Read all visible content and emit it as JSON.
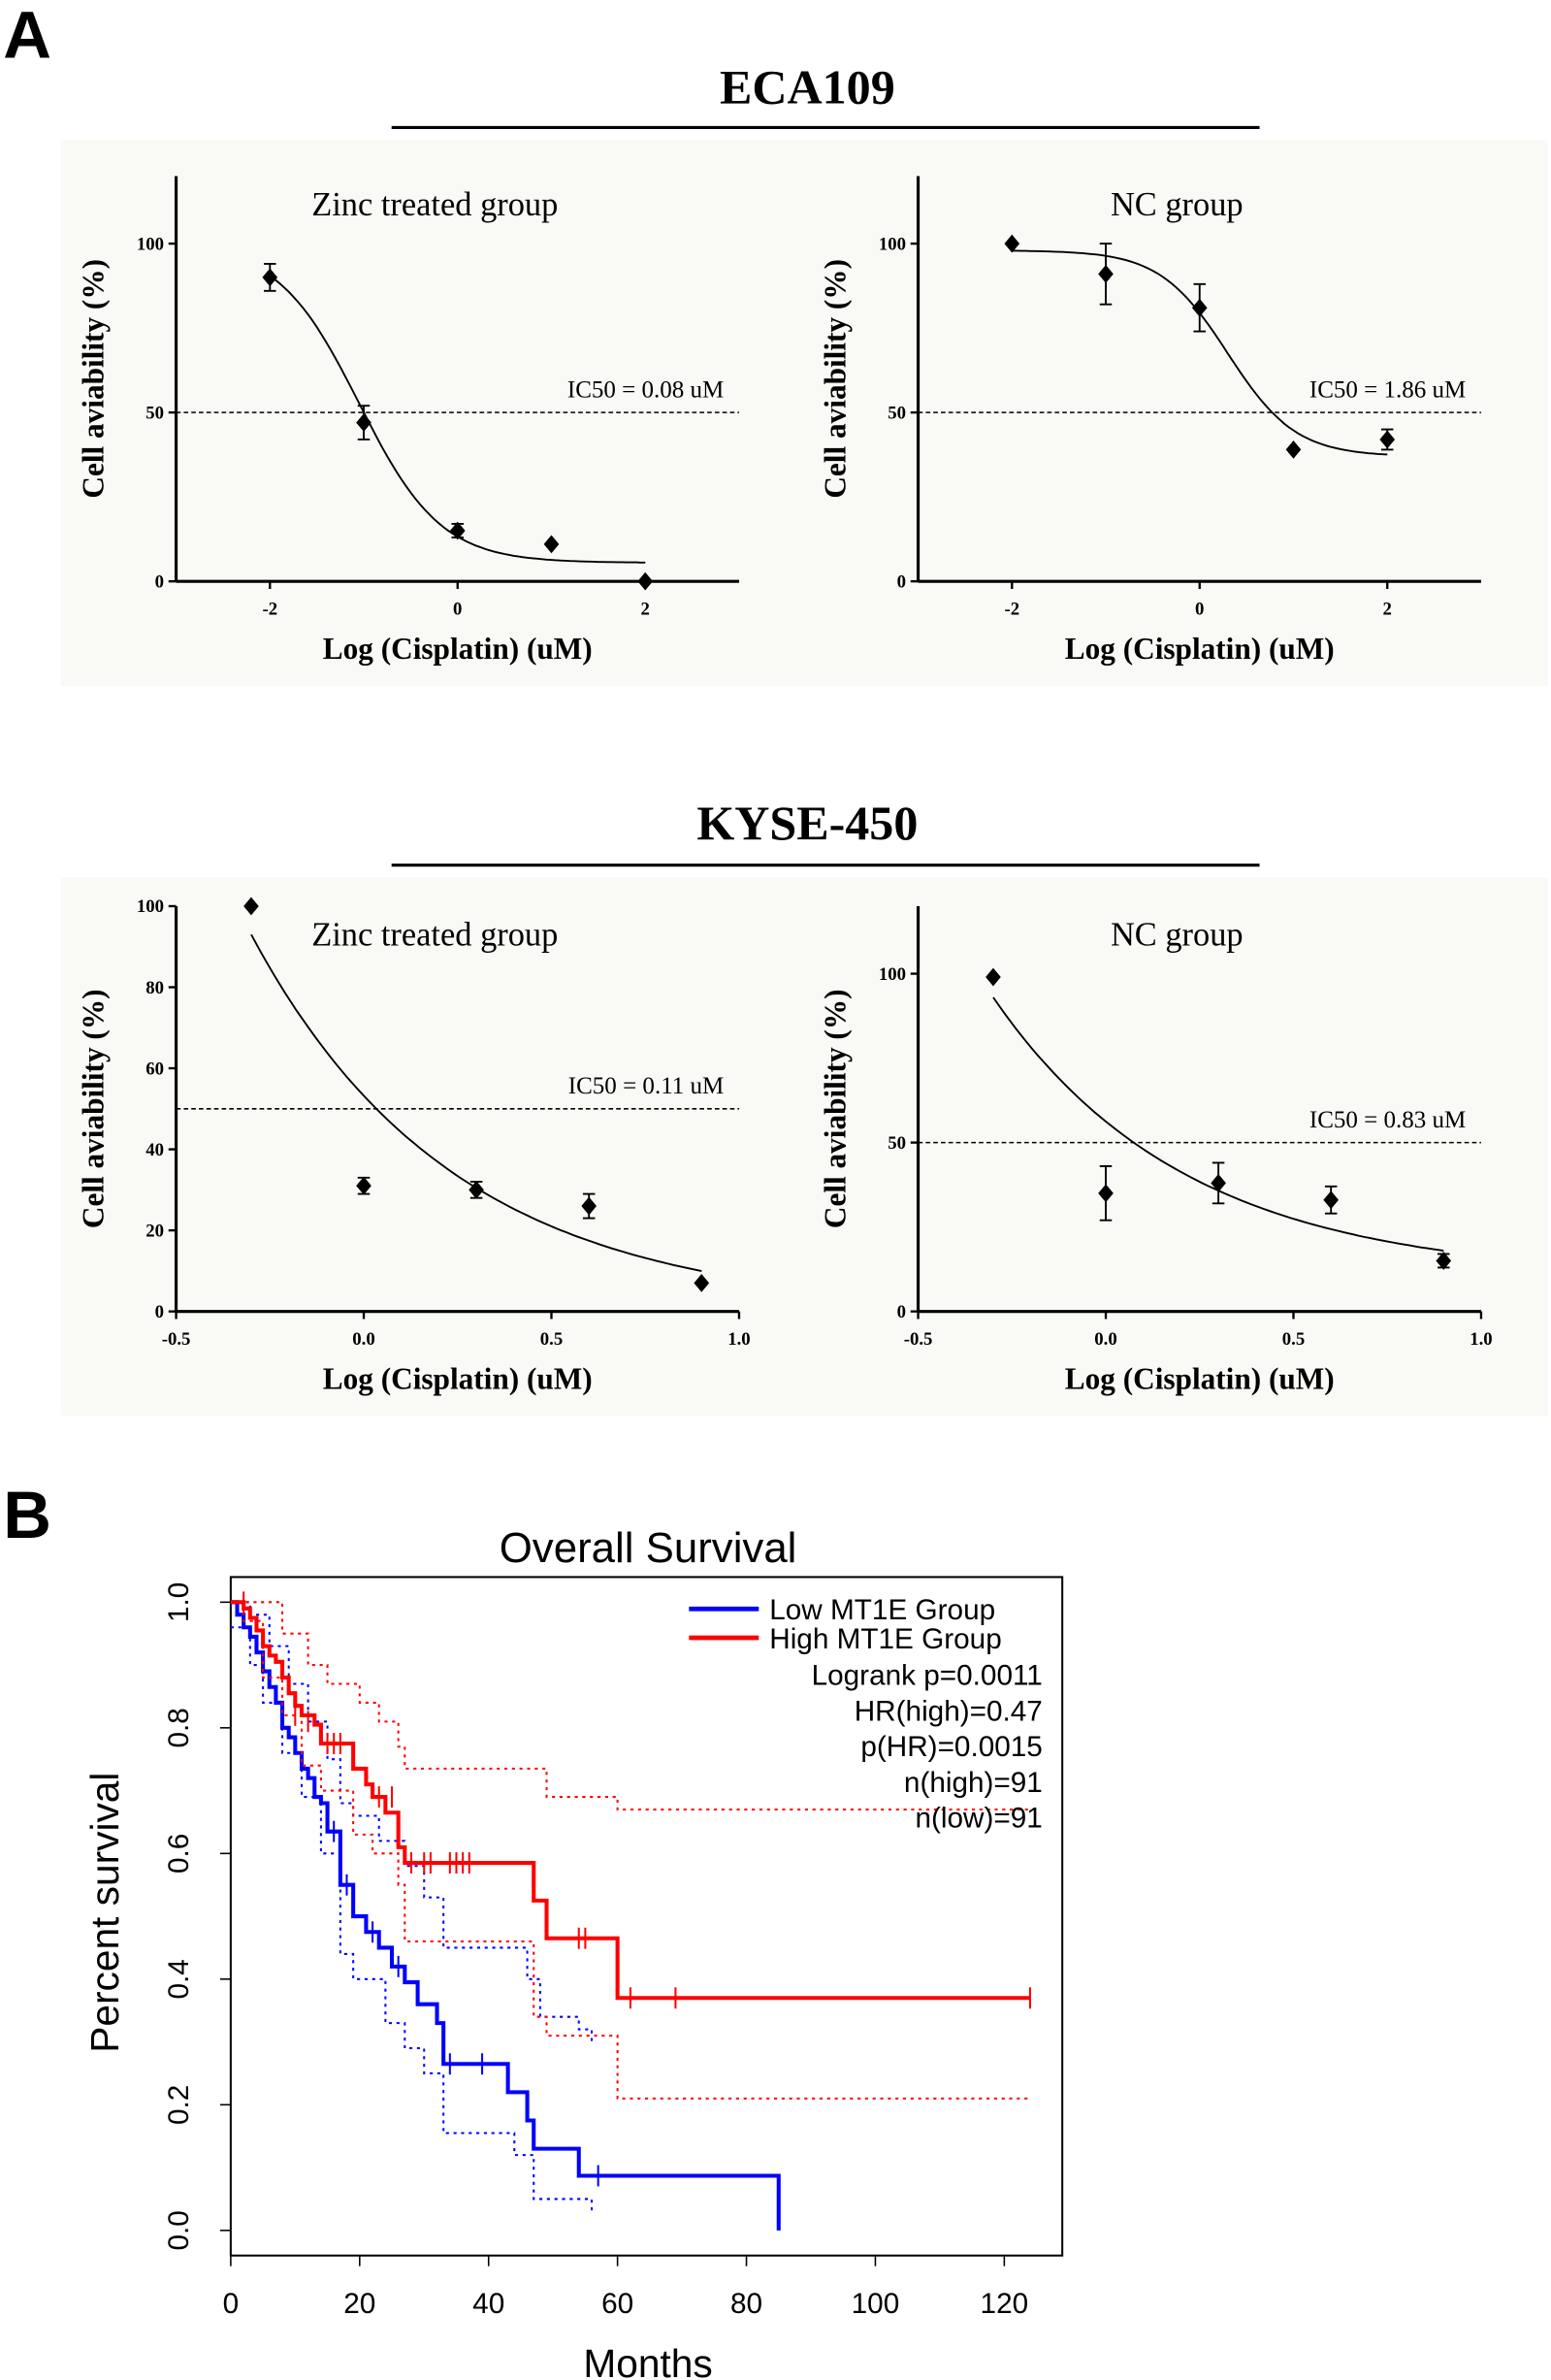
{
  "panel_labels": {
    "a": "A",
    "b": "B"
  },
  "groups": [
    {
      "title": "ECA109"
    },
    {
      "title": "KYSE-450"
    }
  ],
  "chart_data": [
    {
      "type": "scatter",
      "group": "ECA109",
      "title": "Zinc treated group",
      "xlabel": "Log (Cisplatin) (uM)",
      "ylabel": "Cell aviability (%)",
      "xlim": [
        -3,
        3
      ],
      "ylim": [
        0,
        120
      ],
      "xticks": [
        -2,
        0,
        2
      ],
      "xtick_labels": [
        "-2",
        "0",
        "2"
      ],
      "yticks": [
        0,
        50,
        100
      ],
      "ytick_labels": [
        "0",
        "50",
        "100"
      ],
      "points": [
        {
          "x": -2,
          "y": 90,
          "err": 4
        },
        {
          "x": -1,
          "y": 47,
          "err": 5
        },
        {
          "x": 0,
          "y": 15,
          "err": 2
        },
        {
          "x": 1,
          "y": 11,
          "err": 0
        },
        {
          "x": 2,
          "y": 0,
          "err": 0
        }
      ],
      "fit": {
        "model": "sigmoid",
        "bottom": 5.5,
        "top": 100,
        "logx50": -1.05,
        "hill": 1.0,
        "range": [
          -2,
          2
        ]
      },
      "reference_line": 50,
      "annotation": "IC50 = 0.08 uM"
    },
    {
      "type": "scatter",
      "group": "ECA109",
      "title": "NC group",
      "xlabel": "Log (Cisplatin) (uM)",
      "ylabel": "Cell aviability (%)",
      "xlim": [
        -3,
        3
      ],
      "ylim": [
        0,
        120
      ],
      "xticks": [
        -2,
        0,
        2
      ],
      "xtick_labels": [
        "-2",
        "0",
        "2"
      ],
      "yticks": [
        0,
        50,
        100
      ],
      "ytick_labels": [
        "0",
        "50",
        "100"
      ],
      "points": [
        {
          "x": -2,
          "y": 100,
          "err": 0
        },
        {
          "x": -1,
          "y": 91,
          "err": 9
        },
        {
          "x": 0,
          "y": 81,
          "err": 7
        },
        {
          "x": 1,
          "y": 39,
          "err": 0
        },
        {
          "x": 2,
          "y": 42,
          "err": 3
        }
      ],
      "fit": {
        "model": "sigmoid",
        "bottom": 37,
        "top": 98,
        "logx50": 0.3,
        "hill": 1.2,
        "range": [
          -2,
          2
        ]
      },
      "reference_line": 50,
      "annotation": "IC50 = 1.86 uM"
    },
    {
      "type": "scatter",
      "group": "KYSE-450",
      "title": "Zinc treated group",
      "xlabel": "Log (Cisplatin) (uM)",
      "ylabel": "Cell aviability (%)",
      "xlim": [
        -0.5,
        1.0
      ],
      "ylim": [
        0,
        100
      ],
      "xticks": [
        -0.5,
        0,
        0.5,
        1.0
      ],
      "xtick_labels": [
        "-0.5",
        "0.0",
        "0.5",
        "1.0"
      ],
      "yticks": [
        0,
        20,
        40,
        60,
        80,
        100
      ],
      "ytick_labels": [
        "0",
        "20",
        "40",
        "60",
        "80",
        "100"
      ],
      "points": [
        {
          "x": -0.3,
          "y": 100,
          "err": 0
        },
        {
          "x": 0,
          "y": 31,
          "err": 2
        },
        {
          "x": 0.3,
          "y": 30,
          "err": 2
        },
        {
          "x": 0.6,
          "y": 26,
          "err": 3
        },
        {
          "x": 0.9,
          "y": 7,
          "err": 0
        }
      ],
      "fit": {
        "model": "exp",
        "c": 0,
        "a": 93,
        "k": 1.86,
        "x0": -0.3,
        "range": [
          -0.3,
          0.9
        ]
      },
      "reference_line": 50,
      "annotation": "IC50 = 0.11 uM"
    },
    {
      "type": "scatter",
      "group": "KYSE-450",
      "title": "NC group",
      "xlabel": "Log (Cisplatin) (uM)",
      "ylabel": "Cell aviability (%)",
      "xlim": [
        -0.5,
        1.0
      ],
      "ylim": [
        0,
        120
      ],
      "xticks": [
        -0.5,
        0,
        0.5,
        1.0
      ],
      "xtick_labels": [
        "-0.5",
        "0.0",
        "0.5",
        "1.0"
      ],
      "yticks": [
        0,
        50,
        100
      ],
      "ytick_labels": [
        "0",
        "50",
        "100"
      ],
      "points": [
        {
          "x": -0.3,
          "y": 99,
          "err": 0
        },
        {
          "x": 0,
          "y": 35,
          "err": 8
        },
        {
          "x": 0.3,
          "y": 38,
          "err": 6
        },
        {
          "x": 0.6,
          "y": 33,
          "err": 4
        },
        {
          "x": 0.9,
          "y": 15,
          "err": 2
        }
      ],
      "fit": {
        "model": "exp",
        "c": 10,
        "a": 83,
        "k": 1.95,
        "x0": -0.3,
        "range": [
          -0.3,
          0.9
        ]
      },
      "reference_line": 50,
      "annotation": "IC50 = 0.83 uM"
    },
    {
      "type": "line",
      "subtype": "kaplan-meier",
      "title": "Overall Survival",
      "xlabel": "Months",
      "ylabel": "Percent survival",
      "xlim": [
        0,
        129
      ],
      "ylim": [
        -0.04,
        1.04
      ],
      "xticks": [
        0,
        20,
        40,
        60,
        80,
        100,
        120
      ],
      "xtick_labels": [
        "0",
        "20",
        "40",
        "60",
        "80",
        "100",
        "120"
      ],
      "yticks": [
        0,
        0.2,
        0.4,
        0.6,
        0.8,
        1.0
      ],
      "ytick_labels": [
        "0.0",
        "0.2",
        "0.4",
        "0.6",
        "0.8",
        "1.0"
      ],
      "legend": {
        "position": "top-right",
        "entries": [
          "Low MT1E Group",
          "High MT1E Group"
        ]
      },
      "stats": [
        "Logrank p=0.0011",
        "HR(high)=0.47",
        "p(HR)=0.0015",
        "n(high)=91",
        "n(low)=91"
      ],
      "series": [
        {
          "name": "Low MT1E Group",
          "color": "#0000ff",
          "steps": [
            [
              0,
              1
            ],
            [
              1,
              0.98
            ],
            [
              2,
              0.96
            ],
            [
              3,
              0.945
            ],
            [
              4,
              0.92
            ],
            [
              5,
              0.89
            ],
            [
              6,
              0.865
            ],
            [
              7,
              0.84
            ],
            [
              8,
              0.8
            ],
            [
              9,
              0.785
            ],
            [
              10,
              0.76
            ],
            [
              11,
              0.735
            ],
            [
              12,
              0.72
            ],
            [
              13,
              0.69
            ],
            [
              14,
              0.68
            ],
            [
              15,
              0.635
            ],
            [
              17,
              0.55
            ],
            [
              19,
              0.5
            ],
            [
              21,
              0.475
            ],
            [
              23,
              0.45
            ],
            [
              25,
              0.42
            ],
            [
              27,
              0.395
            ],
            [
              29,
              0.36
            ],
            [
              32,
              0.33
            ],
            [
              33,
              0.265
            ],
            [
              43,
              0.22
            ],
            [
              46,
              0.175
            ],
            [
              47,
              0.13
            ],
            [
              54,
              0.087
            ],
            [
              85,
              0
            ]
          ],
          "end": 85,
          "censored": [
            [
              16,
              0.635
            ],
            [
              18,
              0.55
            ],
            [
              22,
              0.475
            ],
            [
              26,
              0.42
            ],
            [
              34,
              0.265
            ],
            [
              39,
              0.265
            ],
            [
              57,
              0.087
            ]
          ],
          "ci_upper": [
            [
              0,
              1
            ],
            [
              3,
              0.98
            ],
            [
              6,
              0.93
            ],
            [
              9,
              0.87
            ],
            [
              12,
              0.81
            ],
            [
              15,
              0.75
            ],
            [
              17,
              0.68
            ],
            [
              19,
              0.66
            ],
            [
              23,
              0.62
            ],
            [
              27,
              0.58
            ],
            [
              30,
              0.53
            ],
            [
              33,
              0.45
            ],
            [
              43,
              0.45
            ],
            [
              46,
              0.4
            ],
            [
              48,
              0.34
            ],
            [
              54,
              0.32
            ],
            [
              56,
              0.3
            ]
          ],
          "ci_lower": [
            [
              0,
              0.96
            ],
            [
              3,
              0.9
            ],
            [
              5,
              0.84
            ],
            [
              8,
              0.76
            ],
            [
              11,
              0.69
            ],
            [
              14,
              0.6
            ],
            [
              17,
              0.44
            ],
            [
              19,
              0.4
            ],
            [
              24,
              0.33
            ],
            [
              27,
              0.29
            ],
            [
              30,
              0.25
            ],
            [
              33,
              0.155
            ],
            [
              43,
              0.155
            ],
            [
              44,
              0.12
            ],
            [
              47,
              0.05
            ],
            [
              54,
              0.05
            ],
            [
              56,
              0.03
            ]
          ]
        },
        {
          "name": "High MT1E Group",
          "color": "#ff0000",
          "steps": [
            [
              0,
              1
            ],
            [
              2,
              0.99
            ],
            [
              3,
              0.975
            ],
            [
              4,
              0.955
            ],
            [
              5,
              0.93
            ],
            [
              6,
              0.915
            ],
            [
              7,
              0.905
            ],
            [
              8,
              0.88
            ],
            [
              9,
              0.855
            ],
            [
              10,
              0.835
            ],
            [
              11,
              0.82
            ],
            [
              13,
              0.805
            ],
            [
              14,
              0.775
            ],
            [
              19,
              0.735
            ],
            [
              21,
              0.71
            ],
            [
              22,
              0.69
            ],
            [
              24,
              0.665
            ],
            [
              26,
              0.61
            ],
            [
              27,
              0.585
            ],
            [
              47,
              0.525
            ],
            [
              49,
              0.465
            ],
            [
              60,
              0.37
            ]
          ],
          "end": 124,
          "censored": [
            [
              2,
              1
            ],
            [
              10,
              0.82
            ],
            [
              12,
              0.81
            ],
            [
              15,
              0.775
            ],
            [
              16,
              0.775
            ],
            [
              17,
              0.775
            ],
            [
              23,
              0.69
            ],
            [
              25,
              0.69
            ],
            [
              28,
              0.585
            ],
            [
              30,
              0.585
            ],
            [
              31,
              0.585
            ],
            [
              34,
              0.585
            ],
            [
              35,
              0.585
            ],
            [
              36,
              0.585
            ],
            [
              37,
              0.585
            ],
            [
              54,
              0.465
            ],
            [
              55,
              0.465
            ],
            [
              62,
              0.37
            ],
            [
              69,
              0.37
            ],
            [
              124,
              0.37
            ]
          ],
          "ci_upper": [
            [
              0,
              1
            ],
            [
              4,
              1
            ],
            [
              8,
              0.95
            ],
            [
              12,
              0.9
            ],
            [
              15,
              0.87
            ],
            [
              19,
              0.87
            ],
            [
              20,
              0.84
            ],
            [
              23,
              0.81
            ],
            [
              26,
              0.77
            ],
            [
              27,
              0.735
            ],
            [
              47,
              0.735
            ],
            [
              49,
              0.69
            ],
            [
              60,
              0.67
            ],
            [
              124,
              0.67
            ]
          ],
          "ci_lower": [
            [
              0,
              1
            ],
            [
              2,
              0.97
            ],
            [
              5,
              0.88
            ],
            [
              8,
              0.82
            ],
            [
              11,
              0.74
            ],
            [
              14,
              0.7
            ],
            [
              19,
              0.63
            ],
            [
              22,
              0.6
            ],
            [
              26,
              0.55
            ],
            [
              27,
              0.46
            ],
            [
              47,
              0.46
            ],
            [
              47,
              0.34
            ],
            [
              49,
              0.31
            ],
            [
              60,
              0.31
            ],
            [
              60,
              0.21
            ],
            [
              124,
              0.21
            ]
          ]
        }
      ]
    }
  ]
}
